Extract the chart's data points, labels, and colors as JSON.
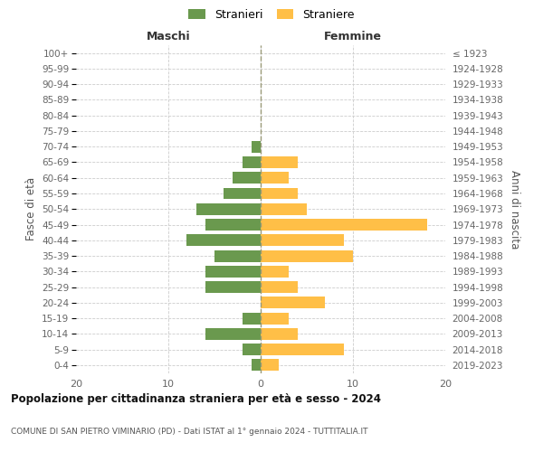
{
  "age_groups": [
    "0-4",
    "5-9",
    "10-14",
    "15-19",
    "20-24",
    "25-29",
    "30-34",
    "35-39",
    "40-44",
    "45-49",
    "50-54",
    "55-59",
    "60-64",
    "65-69",
    "70-74",
    "75-79",
    "80-84",
    "85-89",
    "90-94",
    "95-99",
    "100+"
  ],
  "birth_years": [
    "2019-2023",
    "2014-2018",
    "2009-2013",
    "2004-2008",
    "1999-2003",
    "1994-1998",
    "1989-1993",
    "1984-1988",
    "1979-1983",
    "1974-1978",
    "1969-1973",
    "1964-1968",
    "1959-1963",
    "1954-1958",
    "1949-1953",
    "1944-1948",
    "1939-1943",
    "1934-1938",
    "1929-1933",
    "1924-1928",
    "≤ 1923"
  ],
  "maschi": [
    1,
    2,
    6,
    2,
    0,
    6,
    6,
    5,
    8,
    6,
    7,
    4,
    3,
    2,
    1,
    0,
    0,
    0,
    0,
    0,
    0
  ],
  "femmine": [
    2,
    9,
    4,
    3,
    7,
    4,
    3,
    10,
    9,
    18,
    5,
    4,
    3,
    4,
    0,
    0,
    0,
    0,
    0,
    0,
    0
  ],
  "color_maschi": "#6a994e",
  "color_femmine": "#ffbf47",
  "title": "Popolazione per cittadinanza straniera per età e sesso - 2024",
  "subtitle": "COMUNE DI SAN PIETRO VIMINARIO (PD) - Dati ISTAT al 1° gennaio 2024 - TUTTITALIA.IT",
  "left_header": "Maschi",
  "right_header": "Femmine",
  "ylabel_left": "Fasce di età",
  "ylabel_right": "Anni di nascita",
  "legend_stranieri": "Stranieri",
  "legend_straniere": "Straniere",
  "xlim": 20,
  "background_color": "#ffffff",
  "grid_color": "#cccccc"
}
